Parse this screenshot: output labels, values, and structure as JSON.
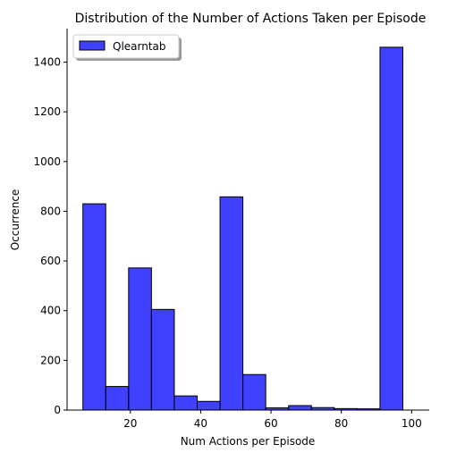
{
  "chart_data": {
    "type": "bar",
    "title": "Distribution of the Number of Actions Taken per Episode",
    "xlabel": "Num Actions per Episode",
    "ylabel": "Occurrence",
    "xlim": [
      2,
      105
    ],
    "ylim": [
      0,
      1535
    ],
    "x_ticks": [
      20,
      40,
      60,
      80,
      100
    ],
    "y_ticks": [
      0,
      200,
      400,
      600,
      800,
      1000,
      1200,
      1400
    ],
    "grid": false,
    "legend_position": "top-left",
    "bar_color": "#0000ff",
    "bar_edge_color": "#000000",
    "series": [
      {
        "name": "Qlearntab",
        "bins": [
          {
            "x0": 6.5,
            "x1": 13.0,
            "count": 830
          },
          {
            "x0": 13.0,
            "x1": 19.5,
            "count": 95
          },
          {
            "x0": 19.5,
            "x1": 26.0,
            "count": 572
          },
          {
            "x0": 26.0,
            "x1": 32.5,
            "count": 405
          },
          {
            "x0": 32.5,
            "x1": 39.0,
            "count": 57
          },
          {
            "x0": 39.0,
            "x1": 45.5,
            "count": 35
          },
          {
            "x0": 45.5,
            "x1": 52.0,
            "count": 858
          },
          {
            "x0": 52.0,
            "x1": 58.5,
            "count": 143
          },
          {
            "x0": 58.5,
            "x1": 65.0,
            "count": 9
          },
          {
            "x0": 65.0,
            "x1": 71.5,
            "count": 18
          },
          {
            "x0": 71.5,
            "x1": 78.0,
            "count": 10
          },
          {
            "x0": 78.0,
            "x1": 84.5,
            "count": 6
          },
          {
            "x0": 84.5,
            "x1": 91.0,
            "count": 5
          },
          {
            "x0": 91.0,
            "x1": 97.5,
            "count": 1460
          }
        ]
      }
    ]
  }
}
